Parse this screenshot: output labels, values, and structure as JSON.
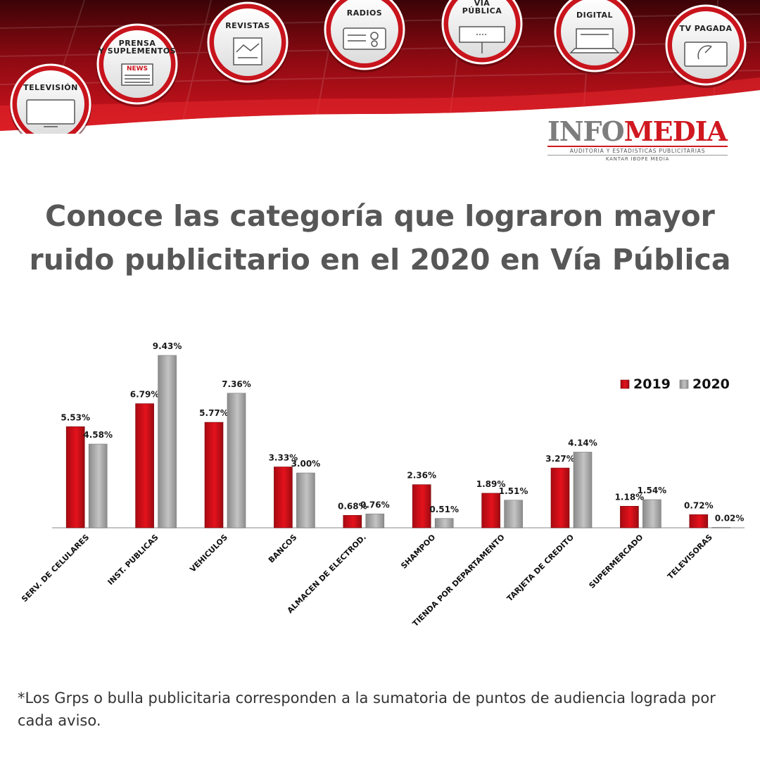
{
  "banner": {
    "media_items": [
      {
        "icon": "tv-icon",
        "lines": [
          "TELEVISIÓN"
        ]
      },
      {
        "icon": "newspaper-icon",
        "lines": [
          "PRENSA",
          "Y SUPLEMENTOS"
        ],
        "badge": "NEWS"
      },
      {
        "icon": "magazine-icon",
        "lines": [
          "REVISTAS"
        ]
      },
      {
        "icon": "radio-icon",
        "lines": [
          "RADIOS"
        ]
      },
      {
        "icon": "billboard-icon",
        "lines": [
          "VÍA",
          "PÚBLICA"
        ]
      },
      {
        "icon": "laptop-icon",
        "lines": [
          "DIGITAL"
        ]
      },
      {
        "icon": "satellite-dish-icon",
        "lines": [
          "TV PAGADA"
        ]
      }
    ],
    "colors": {
      "red": "#c8141c",
      "dark_red": "#7a0a0f",
      "white": "#ffffff"
    }
  },
  "logo": {
    "brand_part1": "INFO",
    "brand_part2": "MEDIA",
    "subtitle": "AUDITORIA Y ESTADISTICAS PUBLICITARIAS",
    "subtitle2": "KANTAR IBOPE MEDIA"
  },
  "title": "Conoce las categoría que lograron mayor ruido publicitario en el 2020 en Vía Pública",
  "footnote": "*Los Grps o bulla publicitaria corresponden a la sumatoria de puntos de audiencia lograda por cada aviso.",
  "chart_data": {
    "type": "bar",
    "categories": [
      "SERV. DE CELULARES",
      "INST. PUBLICAS",
      "VEHICULOS",
      "BANCOS",
      "ALMACEN DE ELECTROD.",
      "SHAMPOO",
      "TIENDA POR DEPARTAMENTO",
      "TARJETA DE CREDITO",
      "SUPERMERCADO",
      "TELEVISORAS"
    ],
    "series": [
      {
        "name": "2019",
        "color": "#d0101a",
        "values": [
          5.53,
          6.79,
          5.77,
          3.33,
          0.68,
          2.36,
          1.89,
          3.27,
          1.18,
          0.72
        ]
      },
      {
        "name": "2020",
        "color": "#a6a6a6",
        "values": [
          4.58,
          9.43,
          7.36,
          3.0,
          0.76,
          0.51,
          1.51,
          4.14,
          1.54,
          0.02
        ]
      }
    ],
    "value_suffix": "%",
    "ylim": [
      0,
      9.7
    ],
    "legend_position": "top-right",
    "grid": false
  }
}
